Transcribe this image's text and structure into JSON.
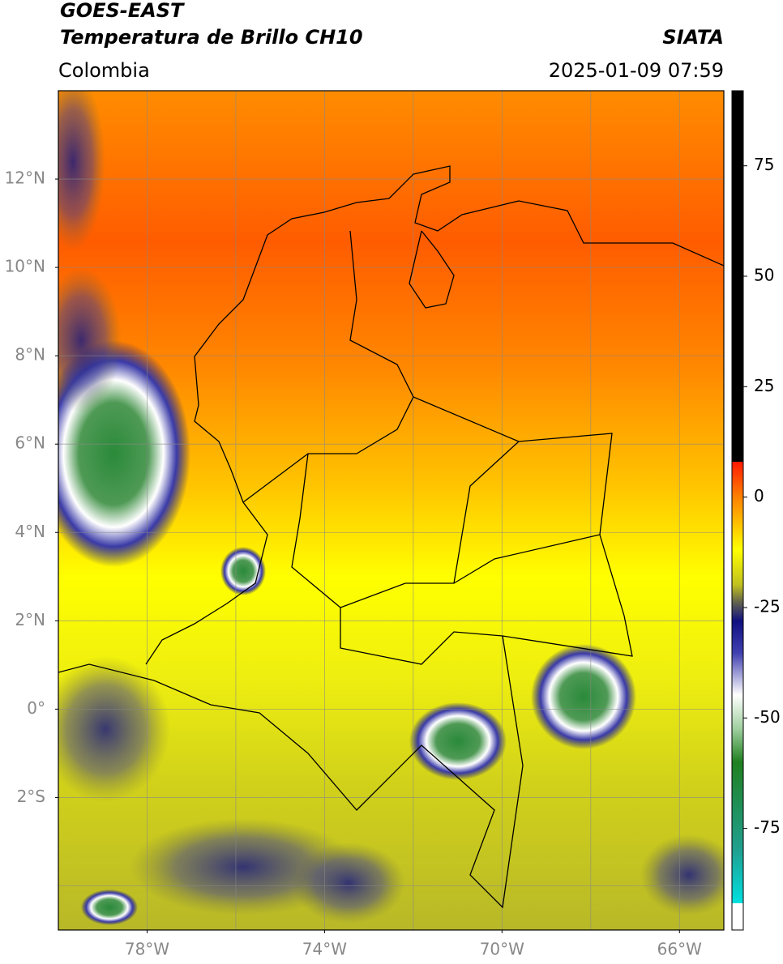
{
  "map": {
    "title": "GOES-EAST",
    "subtitle": "Temperatura de Brillo CH10",
    "source": "SIATA",
    "region": "Colombia",
    "timestamp": "2025-01-09 07:59",
    "lonlim": [
      -80,
      -65
    ],
    "latlim": [
      -5,
      14
    ],
    "xticks": [
      {
        "value": -78,
        "label": "78°W"
      },
      {
        "value": -74,
        "label": "74°W"
      },
      {
        "value": -70,
        "label": "70°W"
      },
      {
        "value": -66,
        "label": "66°W"
      }
    ],
    "yticks": [
      {
        "value": 12,
        "label": "12°N"
      },
      {
        "value": 10,
        "label": "10°N"
      },
      {
        "value": 8,
        "label": "8°N"
      },
      {
        "value": 6,
        "label": "6°N"
      },
      {
        "value": 4,
        "label": "4°N"
      },
      {
        "value": 2,
        "label": "2°N"
      },
      {
        "value": 0,
        "label": "0°"
      },
      {
        "value": -2,
        "label": "2°S"
      }
    ],
    "xgrid": [
      -78,
      -76,
      -74,
      -72,
      -70,
      -68,
      -66
    ],
    "ygrid": [
      -4,
      -2,
      0,
      2,
      4,
      6,
      8,
      10,
      12
    ],
    "colorbar": {
      "lim": [
        -98,
        92
      ],
      "ticks": [
        75,
        50,
        25,
        0,
        -25,
        -50,
        -75
      ]
    }
  }
}
